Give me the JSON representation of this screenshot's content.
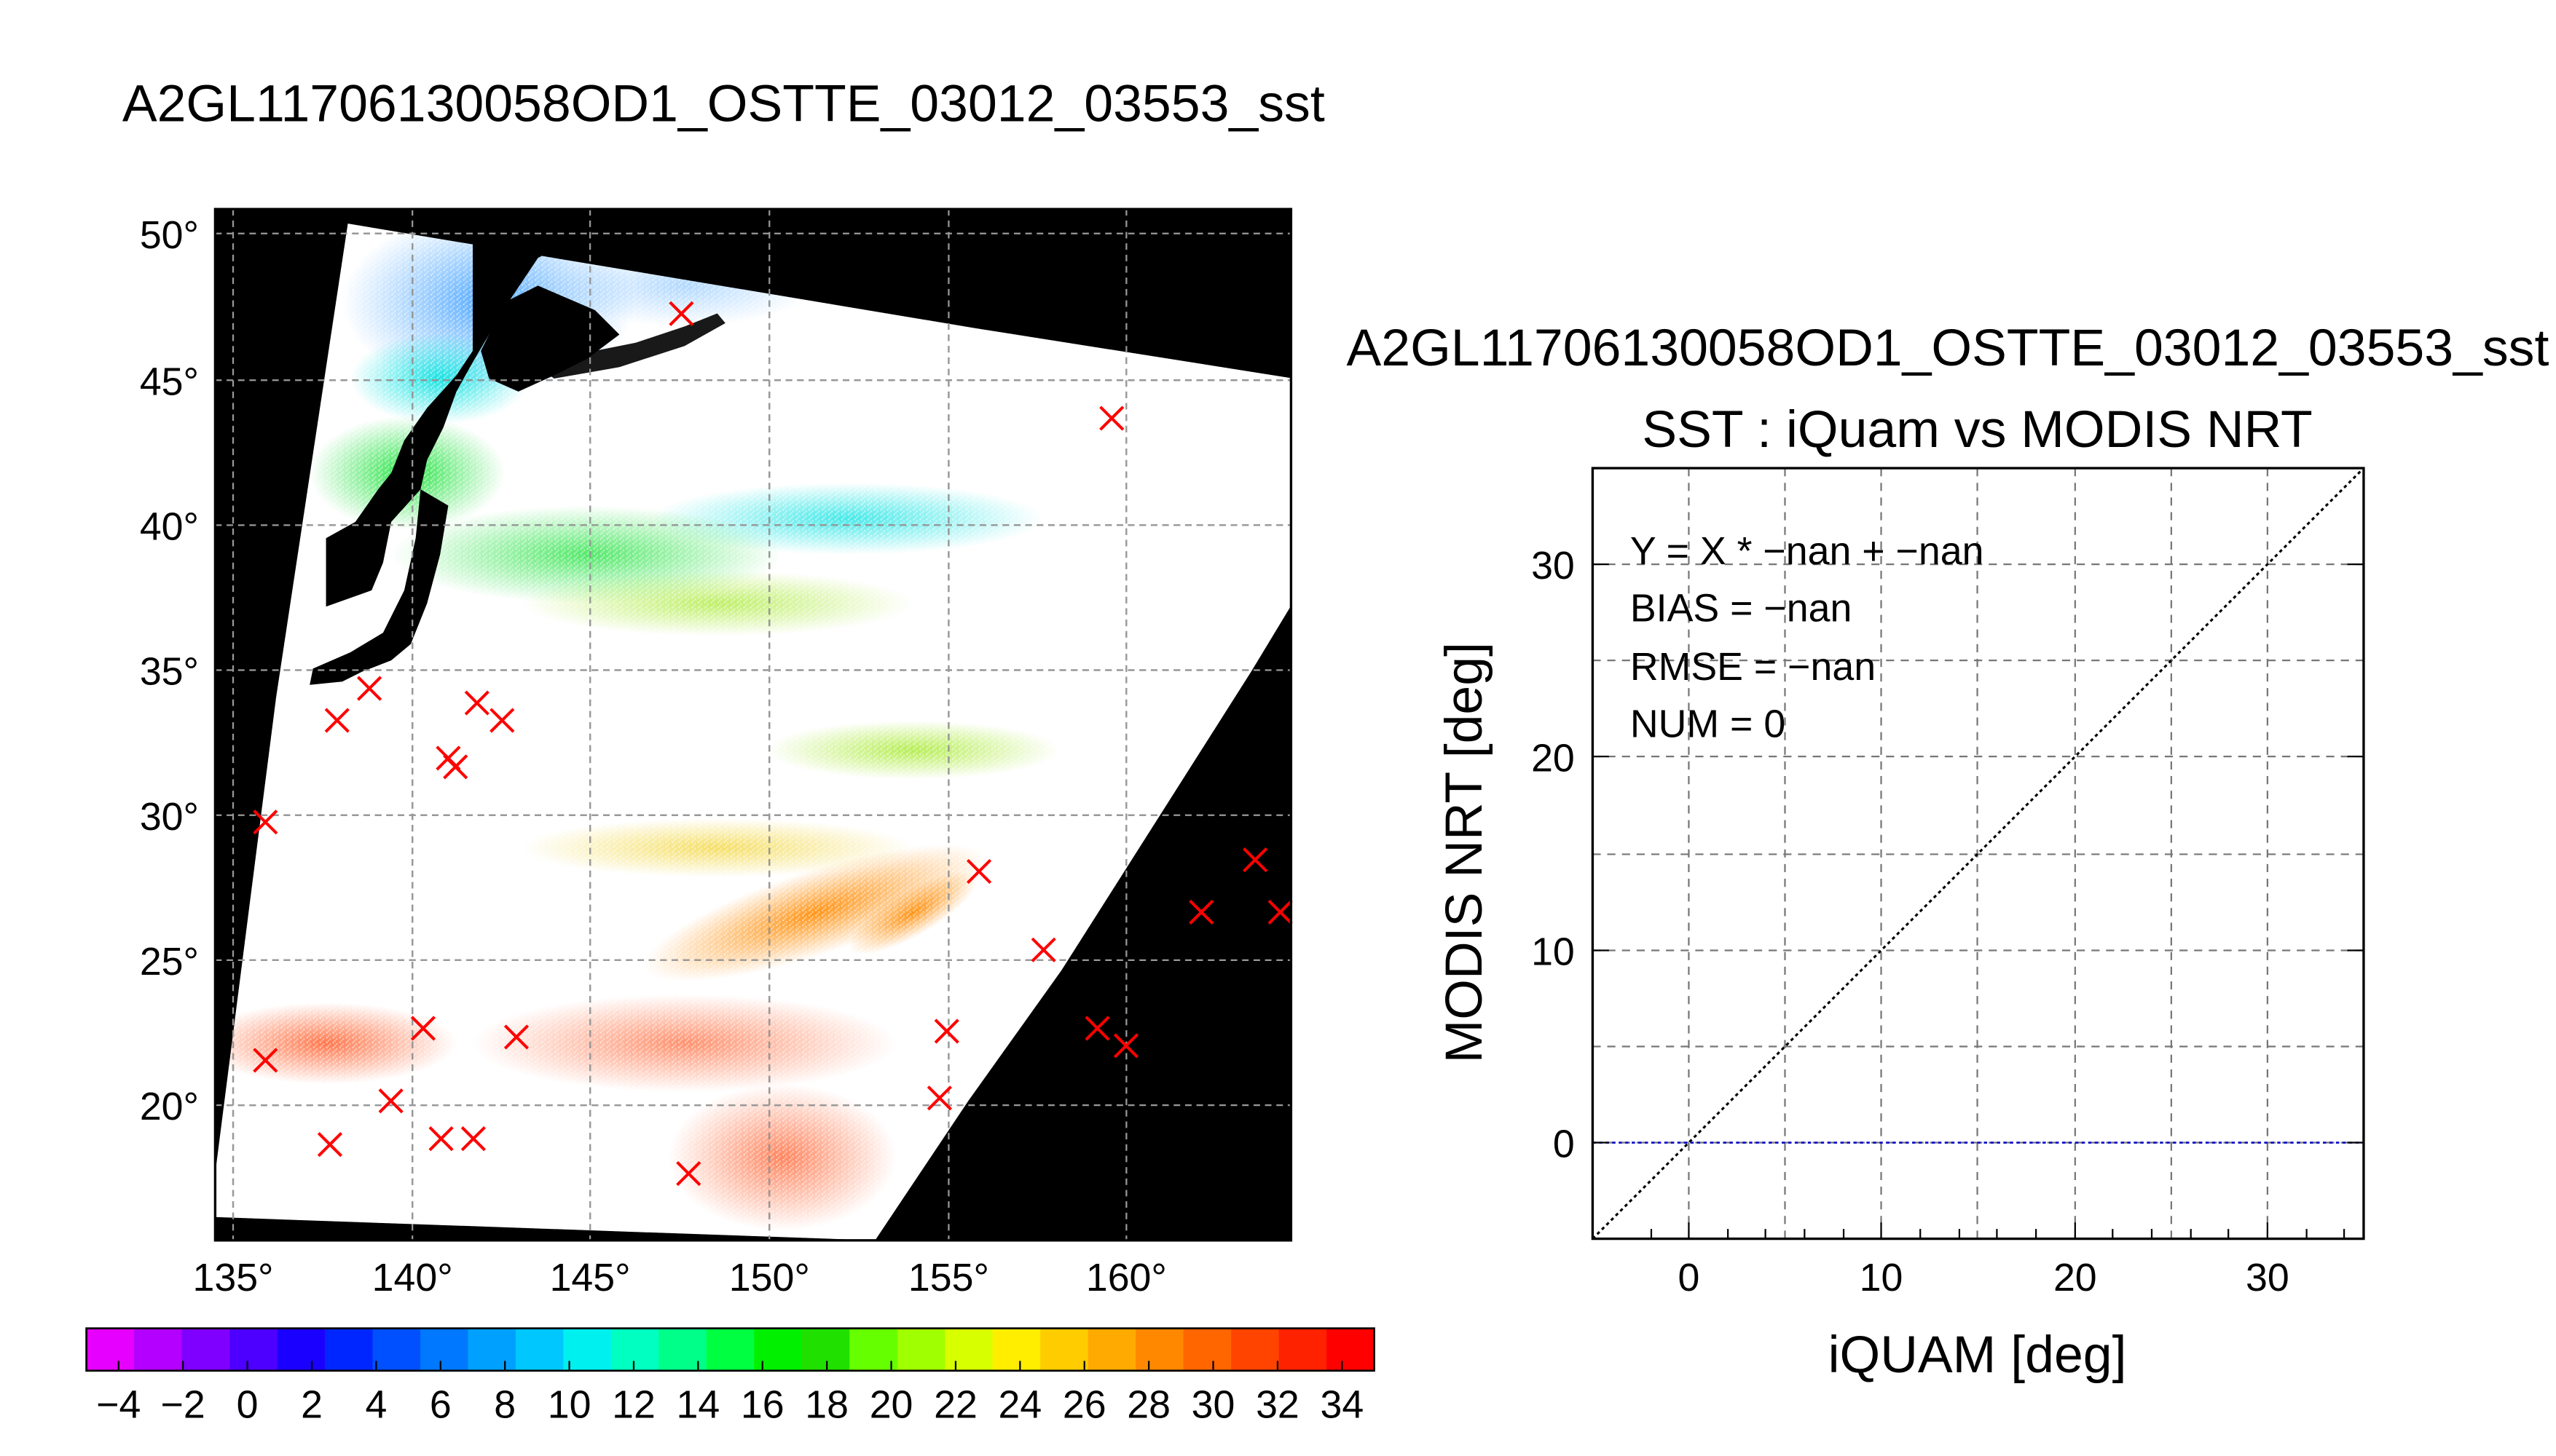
{
  "page_title": "A2GL11706130058OD1_OSTTE_03012_03553_sst",
  "chart_data": [
    {
      "type": "map",
      "title": "A2GL11706130058OD1_OSTTE_03012_03553_sst",
      "lon_ticks": [
        "135°",
        "140°",
        "145°",
        "150°",
        "155°",
        "160°"
      ],
      "lat_ticks": [
        "50°",
        "45°",
        "40°",
        "35°",
        "30°",
        "25°",
        "20°"
      ],
      "lon_range": [
        134.5,
        164.5
      ],
      "lat_range": [
        15.5,
        51
      ],
      "grid": true,
      "colorbar": {
        "ticks": [
          "-4",
          "-2",
          "0",
          "2",
          "4",
          "6",
          "8",
          "10",
          "12",
          "14",
          "16",
          "18",
          "20",
          "22",
          "24",
          "26",
          "28",
          "30",
          "32",
          "34"
        ],
        "range": [
          -5,
          35
        ],
        "colors": [
          "#e600ff",
          "#b300ff",
          "#8000ff",
          "#4d00ff",
          "#1a00ff",
          "#0026ff",
          "#0050ff",
          "#0078ff",
          "#00a0ff",
          "#00c8ff",
          "#00f0f0",
          "#00ffc0",
          "#00ff88",
          "#00ff40",
          "#00f000",
          "#20e000",
          "#66ff00",
          "#a0ff00",
          "#d8ff00",
          "#ffee00",
          "#ffcc00",
          "#ffaa00",
          "#ff8800",
          "#ff6600",
          "#ff4400",
          "#ff2200",
          "#ff0000"
        ]
      },
      "points": [
        {
          "lon": 147.5,
          "lat": 47.4
        },
        {
          "lon": 159.5,
          "lat": 43.8
        },
        {
          "lon": 138.8,
          "lat": 34.5
        },
        {
          "lon": 137.9,
          "lat": 33.4
        },
        {
          "lon": 141.8,
          "lat": 34.0
        },
        {
          "lon": 142.5,
          "lat": 33.4
        },
        {
          "lon": 141.0,
          "lat": 32.1
        },
        {
          "lon": 141.2,
          "lat": 31.8
        },
        {
          "lon": 135.9,
          "lat": 29.9
        },
        {
          "lon": 155.8,
          "lat": 28.2
        },
        {
          "lon": 163.5,
          "lat": 28.6
        },
        {
          "lon": 162.0,
          "lat": 26.8
        },
        {
          "lon": 164.2,
          "lat": 26.8
        },
        {
          "lon": 157.6,
          "lat": 25.5
        },
        {
          "lon": 140.3,
          "lat": 22.8
        },
        {
          "lon": 142.9,
          "lat": 22.5
        },
        {
          "lon": 154.9,
          "lat": 22.7
        },
        {
          "lon": 159.1,
          "lat": 22.8
        },
        {
          "lon": 159.9,
          "lat": 22.2
        },
        {
          "lon": 135.9,
          "lat": 21.7
        },
        {
          "lon": 139.4,
          "lat": 20.3
        },
        {
          "lon": 154.7,
          "lat": 20.4
        },
        {
          "lon": 137.7,
          "lat": 18.8
        },
        {
          "lon": 140.8,
          "lat": 19.0
        },
        {
          "lon": 141.7,
          "lat": 19.0
        },
        {
          "lon": 147.7,
          "lat": 17.8
        }
      ]
    },
    {
      "type": "scatter",
      "title": "A2GL11706130058OD1_OSTTE_03012_03553_sst",
      "subtitle": "SST : iQuam vs MODIS NRT",
      "xlabel": "iQUAM [deg]",
      "ylabel": "MODIS NRT [deg]",
      "xlim": [
        -5,
        35
      ],
      "ylim": [
        -5,
        35
      ],
      "xticks": [
        "0",
        "10",
        "20",
        "30"
      ],
      "yticks": [
        "0",
        "10",
        "20",
        "30"
      ],
      "grid": true,
      "stats": [
        "Y = X * −nan + −nan",
        "BIAS = −nan",
        "RMSE = −nan",
        "NUM = 0"
      ],
      "series": [],
      "reference_lines": [
        {
          "kind": "one-to-one",
          "color": "#000000",
          "style": "dotted"
        },
        {
          "kind": "horizontal",
          "y": 0,
          "color": "#0000cc",
          "style": "dotted"
        }
      ]
    }
  ]
}
